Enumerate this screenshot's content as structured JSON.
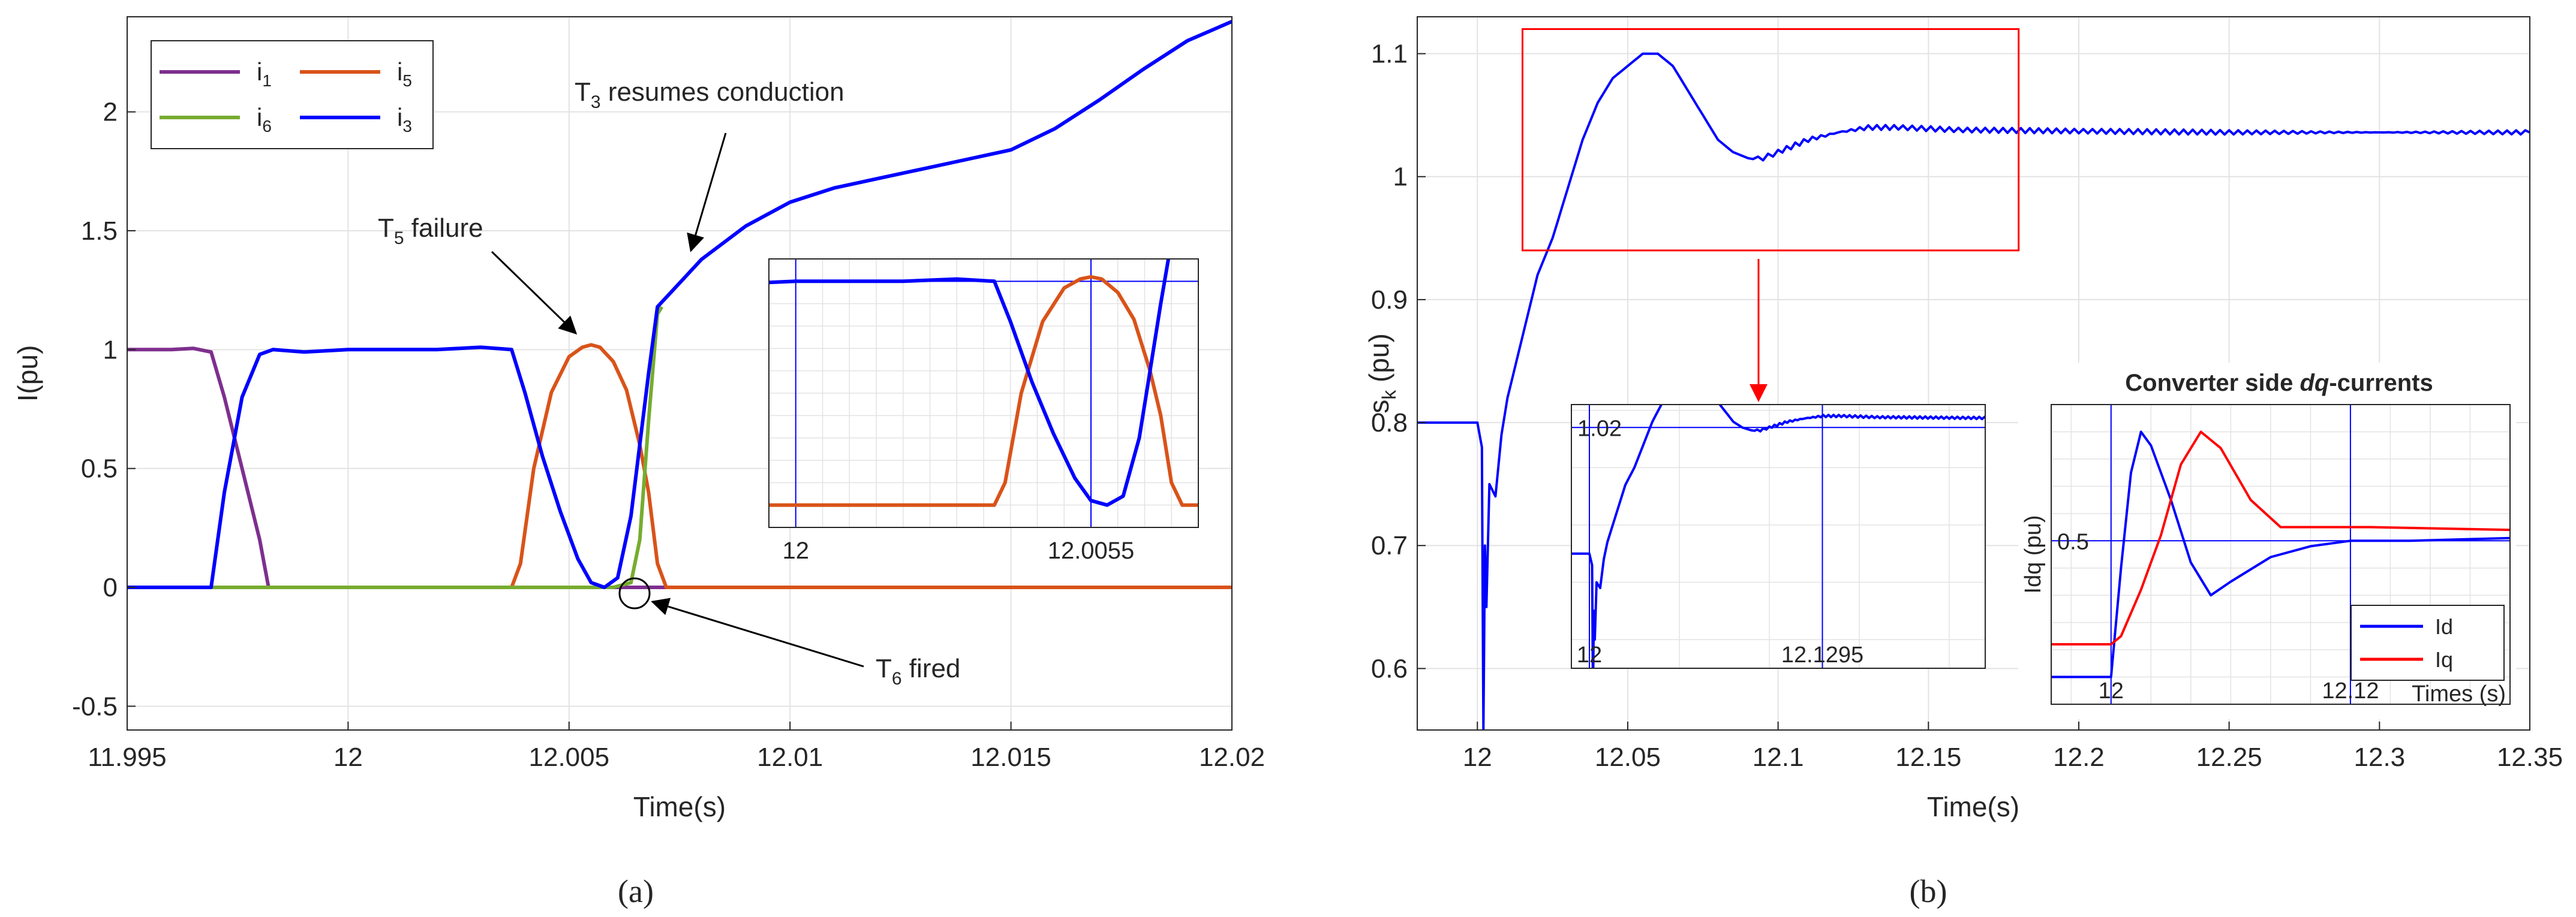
{
  "chart_data": [
    {
      "id": "a",
      "type": "line",
      "caption": "(a)",
      "xlabel": "Time(s)",
      "ylabel": "I(pu)",
      "xlim": [
        11.995,
        12.02
      ],
      "ylim": [
        -0.6,
        2.4
      ],
      "xticks": [
        11.995,
        12,
        12.005,
        12.01,
        12.015,
        12.02
      ],
      "xtick_labels": [
        "11.995",
        "12",
        "12.005",
        "12.01",
        "12.015",
        "12.02"
      ],
      "yticks": [
        -0.5,
        0,
        0.5,
        1,
        1.5,
        2
      ],
      "ytick_labels": [
        "-0.5",
        "0",
        "0.5",
        "1",
        "1.5",
        "2"
      ],
      "grid": true,
      "legend": {
        "position": "top-left",
        "entries": [
          {
            "base": "i",
            "sub": "1",
            "color": "#7e2f8e"
          },
          {
            "base": "i",
            "sub": "5",
            "color": "#d95319"
          },
          {
            "base": "i",
            "sub": "6",
            "color": "#77ac30"
          },
          {
            "base": "i",
            "sub": "3",
            "color": "#0000ff"
          }
        ]
      },
      "series": [
        {
          "name": "i1",
          "color": "#7e2f8e",
          "points": [
            [
              11.995,
              1.0
            ],
            [
              11.996,
              1.0
            ],
            [
              11.9965,
              1.005
            ],
            [
              11.9969,
              0.99
            ],
            [
              11.9972,
              0.8
            ],
            [
              11.9976,
              0.5
            ],
            [
              11.998,
              0.2
            ],
            [
              11.9982,
              0.0
            ],
            [
              12.02,
              0.0
            ]
          ]
        },
        {
          "name": "i5",
          "color": "#d95319",
          "points": [
            [
              11.995,
              0.0
            ],
            [
              12.0037,
              0.0
            ],
            [
              12.0039,
              0.1
            ],
            [
              12.0042,
              0.5
            ],
            [
              12.0046,
              0.82
            ],
            [
              12.005,
              0.97
            ],
            [
              12.0053,
              1.01
            ],
            [
              12.0055,
              1.02
            ],
            [
              12.0057,
              1.01
            ],
            [
              12.006,
              0.95
            ],
            [
              12.0063,
              0.83
            ],
            [
              12.0066,
              0.6
            ],
            [
              12.0068,
              0.4
            ],
            [
              12.007,
              0.1
            ],
            [
              12.0072,
              0.0
            ],
            [
              12.02,
              0.0
            ]
          ]
        },
        {
          "name": "i6",
          "color": "#77ac30",
          "points": [
            [
              11.995,
              0.0
            ],
            [
              12.006,
              0.0
            ],
            [
              12.0064,
              0.02
            ],
            [
              12.0066,
              0.2
            ],
            [
              12.0068,
              0.7
            ],
            [
              12.007,
              1.15
            ],
            [
              12.0071,
              1.18
            ]
          ]
        },
        {
          "name": "i3",
          "color": "#0000ff",
          "points": [
            [
              11.995,
              0.0
            ],
            [
              11.9969,
              0.0
            ],
            [
              11.9972,
              0.4
            ],
            [
              11.9976,
              0.8
            ],
            [
              11.998,
              0.98
            ],
            [
              11.9983,
              1.0
            ],
            [
              11.999,
              0.99
            ],
            [
              12.0,
              1.0
            ],
            [
              12.001,
              1.0
            ],
            [
              12.002,
              1.0
            ],
            [
              12.003,
              1.01
            ],
            [
              12.0037,
              1.0
            ],
            [
              12.004,
              0.82
            ],
            [
              12.0044,
              0.55
            ],
            [
              12.0048,
              0.32
            ],
            [
              12.0052,
              0.12
            ],
            [
              12.0055,
              0.02
            ],
            [
              12.0058,
              0.0
            ],
            [
              12.0061,
              0.04
            ],
            [
              12.0064,
              0.3
            ],
            [
              12.0066,
              0.6
            ],
            [
              12.0068,
              0.9
            ],
            [
              12.007,
              1.18
            ],
            [
              12.0075,
              1.28
            ],
            [
              12.008,
              1.38
            ],
            [
              12.009,
              1.52
            ],
            [
              12.01,
              1.62
            ],
            [
              12.011,
              1.68
            ],
            [
              12.012,
              1.72
            ],
            [
              12.013,
              1.76
            ],
            [
              12.014,
              1.8
            ],
            [
              12.015,
              1.84
            ],
            [
              12.016,
              1.93
            ],
            [
              12.017,
              2.05
            ],
            [
              12.018,
              2.18
            ],
            [
              12.019,
              2.3
            ],
            [
              12.02,
              2.38
            ]
          ]
        }
      ],
      "annotations": [
        {
          "base": "T",
          "sub": "3",
          "rest": " resumes conduction",
          "x": 12.0073,
          "y": 1.2
        },
        {
          "base": "T",
          "sub": "5",
          "rest": " failure",
          "x": 12.0055,
          "y": 1.03
        },
        {
          "base": "T",
          "sub": "6",
          "rest": " fired",
          "x": 12.0066,
          "y": -0.02
        }
      ],
      "inset": {
        "xlim": [
          11.9995,
          12.0075
        ],
        "ylim": [
          -0.1,
          1.1
        ],
        "xtick_labels": [
          "12",
          "12.0055"
        ],
        "xticks": [
          12.0,
          12.0055
        ],
        "vlines": [
          12.0,
          12.0055
        ],
        "hline": 1.0
      }
    },
    {
      "id": "b",
      "type": "line",
      "caption": "(b)",
      "xlabel": "Time(s)",
      "ylabel_base": "s",
      "ylabel_sub": "k",
      "ylabel_rest": " (pu)",
      "xlim": [
        11.98,
        12.35
      ],
      "ylim": [
        0.55,
        1.13
      ],
      "xticks": [
        12,
        12.05,
        12.1,
        12.15,
        12.2,
        12.25,
        12.3,
        12.35
      ],
      "xtick_labels": [
        "12",
        "12.05",
        "12.1",
        "12.15",
        "12.2",
        "12.25",
        "12.3",
        "12.35"
      ],
      "yticks": [
        0.6,
        0.7,
        0.8,
        0.9,
        1,
        1.1
      ],
      "ytick_labels": [
        "0.6",
        "0.7",
        "0.8",
        "0.9",
        "1",
        "1.1"
      ],
      "grid": true,
      "series": [
        {
          "name": "sk",
          "color": "#0000ff",
          "points": [
            [
              11.98,
              0.8
            ],
            [
              12.0,
              0.8
            ],
            [
              12.0015,
              0.78
            ],
            [
              12.002,
              0.55
            ],
            [
              12.0025,
              0.7
            ],
            [
              12.003,
              0.65
            ],
            [
              12.004,
              0.75
            ],
            [
              12.006,
              0.74
            ],
            [
              12.008,
              0.79
            ],
            [
              12.01,
              0.82
            ],
            [
              12.015,
              0.87
            ],
            [
              12.02,
              0.92
            ],
            [
              12.025,
              0.95
            ],
            [
              12.03,
              0.99
            ],
            [
              12.035,
              1.03
            ],
            [
              12.04,
              1.06
            ],
            [
              12.045,
              1.08
            ],
            [
              12.05,
              1.09
            ],
            [
              12.055,
              1.1
            ],
            [
              12.06,
              1.1
            ],
            [
              12.065,
              1.09
            ],
            [
              12.07,
              1.07
            ],
            [
              12.075,
              1.05
            ],
            [
              12.08,
              1.03
            ],
            [
              12.085,
              1.02
            ],
            [
              12.09,
              1.015
            ],
            [
              12.095,
              1.015
            ],
            [
              12.1,
              1.02
            ],
            [
              12.11,
              1.03
            ],
            [
              12.12,
              1.036
            ],
            [
              12.13,
              1.04
            ],
            [
              12.14,
              1.04
            ],
            [
              12.16,
              1.038
            ],
            [
              12.2,
              1.037
            ],
            [
              12.25,
              1.036
            ],
            [
              12.3,
              1.036
            ],
            [
              12.35,
              1.036
            ]
          ]
        }
      ],
      "zoom_box": {
        "x": [
          12.015,
          12.18
        ],
        "y": [
          0.94,
          1.12
        ]
      },
      "inset1": {
        "xlim": [
          11.99,
          12.22
        ],
        "ylim": [
          0.6,
          1.06
        ],
        "xticks": [
          12,
          12.1295
        ],
        "xtick_labels": [
          "12",
          "12.1295"
        ],
        "ytick": 1.02,
        "ytick_label": "1.02",
        "vlines": [
          12,
          12.1295
        ],
        "hline": 1.02
      },
      "inset2": {
        "title_prefix": "Converter side ",
        "title_emph": "dq",
        "title_suffix": "-currents",
        "xlabel": "Times (s)",
        "ylabel": "Idq (pu)",
        "xlim": [
          11.97,
          12.2
        ],
        "ylim": [
          -0.1,
          1.0
        ],
        "xticks": [
          12,
          12.12
        ],
        "xtick_labels": [
          "12",
          "12.12"
        ],
        "ytick": 0.5,
        "ytick_label": "0.5",
        "vlines": [
          12,
          12.12
        ],
        "hline": 0.5,
        "legend": {
          "position": "bottom-right",
          "entries": [
            {
              "label": "Id",
              "color": "#0000ff"
            },
            {
              "label": "Iq",
              "color": "#ff0000"
            }
          ]
        },
        "series": [
          {
            "name": "Id",
            "color": "#0000ff",
            "points": [
              [
                11.97,
                0.0
              ],
              [
                12.0,
                0.0
              ],
              [
                12.005,
                0.4
              ],
              [
                12.01,
                0.75
              ],
              [
                12.015,
                0.9
              ],
              [
                12.02,
                0.85
              ],
              [
                12.03,
                0.65
              ],
              [
                12.04,
                0.42
              ],
              [
                12.05,
                0.3
              ],
              [
                12.06,
                0.35
              ],
              [
                12.08,
                0.44
              ],
              [
                12.1,
                0.48
              ],
              [
                12.12,
                0.5
              ],
              [
                12.15,
                0.5
              ],
              [
                12.2,
                0.51
              ]
            ]
          },
          {
            "name": "Iq",
            "color": "#ff0000",
            "points": [
              [
                11.97,
                0.12
              ],
              [
                11.995,
                0.12
              ],
              [
                12.0,
                0.12
              ],
              [
                12.005,
                0.15
              ],
              [
                12.015,
                0.32
              ],
              [
                12.025,
                0.52
              ],
              [
                12.035,
                0.78
              ],
              [
                12.045,
                0.9
              ],
              [
                12.055,
                0.84
              ],
              [
                12.07,
                0.65
              ],
              [
                12.085,
                0.55
              ],
              [
                12.1,
                0.55
              ],
              [
                12.13,
                0.55
              ],
              [
                12.2,
                0.54
              ]
            ]
          }
        ]
      }
    }
  ]
}
